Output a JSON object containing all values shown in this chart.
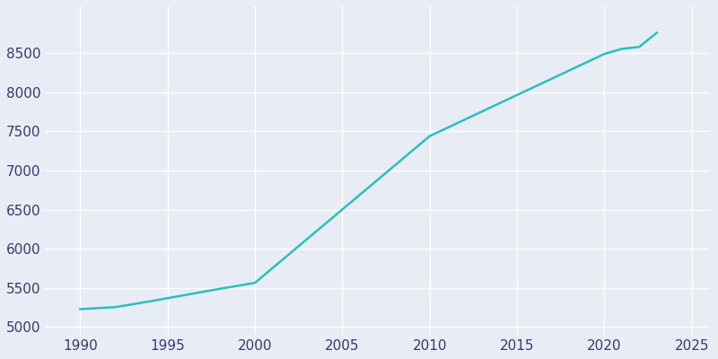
{
  "years": [
    1990,
    1992,
    1994,
    1996,
    1998,
    2000,
    2010,
    2020,
    2021,
    2022,
    2023
  ],
  "population": [
    5230,
    5255,
    5330,
    5410,
    5490,
    5565,
    7440,
    8490,
    8555,
    8580,
    8760
  ],
  "line_color": "#2abfbf",
  "bg_color": "#e8ecf5",
  "grid_color": "#ffffff",
  "tick_color": "#3a3a6a",
  "ylim": [
    4900,
    9100
  ],
  "xlim": [
    1988,
    2026
  ],
  "yticks": [
    5000,
    5500,
    6000,
    6500,
    7000,
    7500,
    8000,
    8500
  ],
  "xticks": [
    1990,
    1995,
    2000,
    2005,
    2010,
    2015,
    2020,
    2025
  ],
  "line_width": 1.8,
  "tick_labelsize": 11
}
